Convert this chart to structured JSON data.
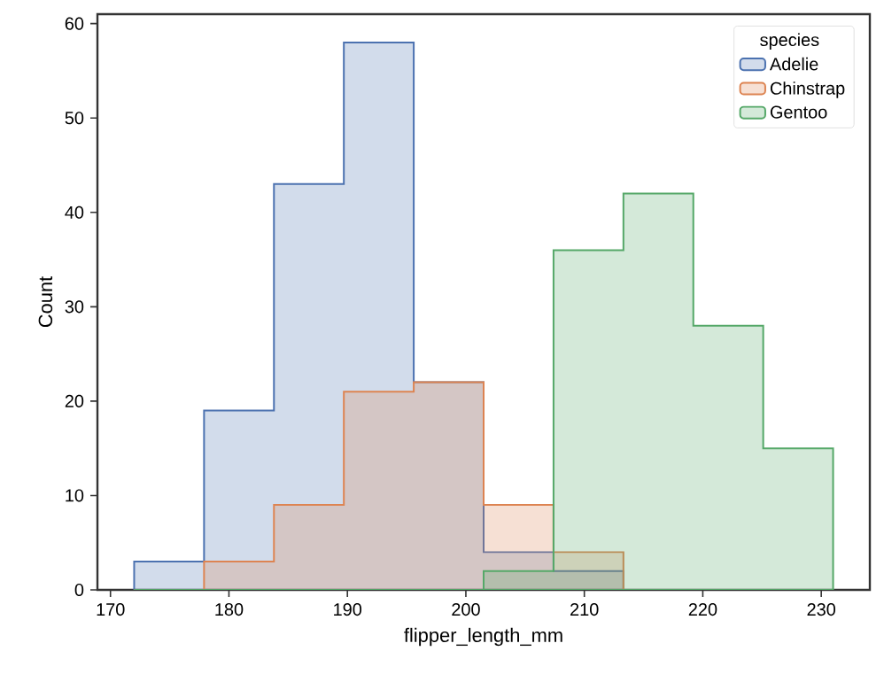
{
  "chart_data": {
    "type": "histogram",
    "xlabel": "flipper_length_mm",
    "ylabel": "Count",
    "legend_title": "species",
    "legend": "top right",
    "grid": false,
    "bins": [
      172,
      177.9,
      183.8,
      189.7,
      195.6,
      201.5,
      207.4,
      213.3,
      219.2,
      225.1,
      231
    ],
    "series": [
      {
        "name": "Adelie",
        "color": "#4c72b0",
        "values": [
          3,
          19,
          43,
          58,
          22,
          4,
          2,
          0,
          0,
          0
        ]
      },
      {
        "name": "Chinstrap",
        "color": "#dd8452",
        "values": [
          0,
          3,
          9,
          21,
          22,
          9,
          4,
          0,
          0,
          0
        ]
      },
      {
        "name": "Gentoo",
        "color": "#55a868",
        "values": [
          0,
          0,
          0,
          0,
          0,
          2,
          36,
          42,
          28,
          15
        ]
      }
    ],
    "xlim": [
      168.9,
      234.1
    ],
    "ylim": [
      0,
      61
    ],
    "xticks": [
      170,
      180,
      190,
      200,
      210,
      220,
      230
    ],
    "yticks": [
      0,
      10,
      20,
      30,
      40,
      50,
      60
    ]
  }
}
